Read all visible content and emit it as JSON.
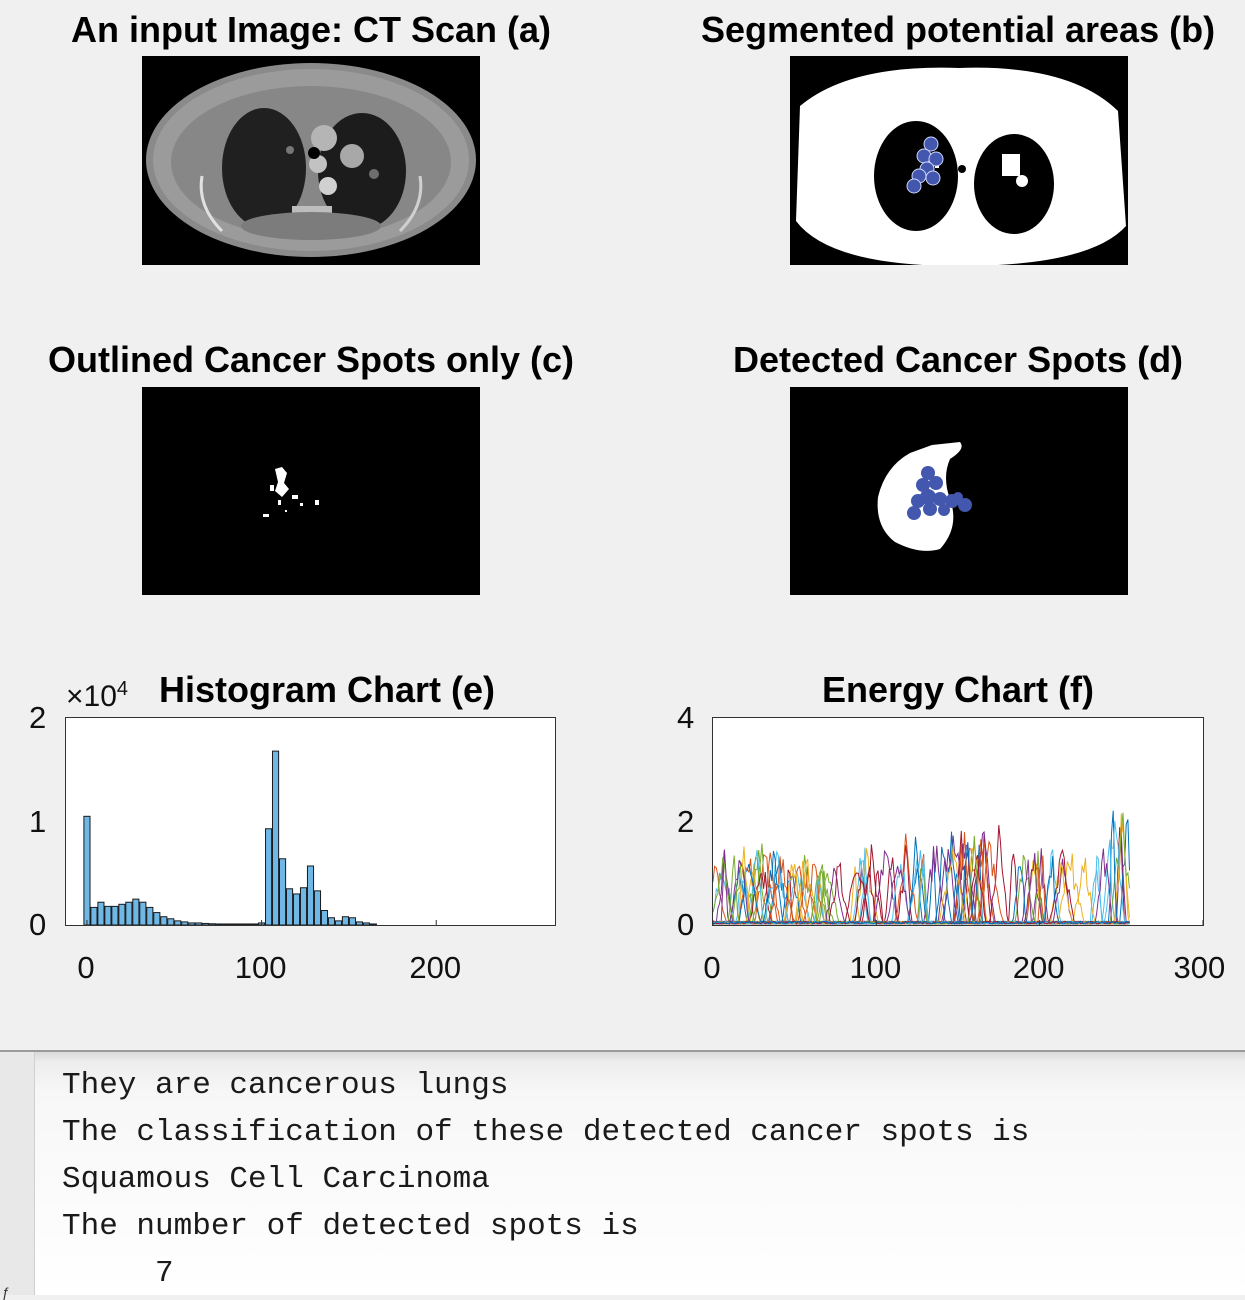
{
  "panels": {
    "a": {
      "title": "An input Image: CT Scan (a)"
    },
    "b": {
      "title": "Segmented potential areas (b)"
    },
    "c": {
      "title": "Outlined Cancer Spots only (c)"
    },
    "d": {
      "title": "Detected Cancer Spots (d)"
    }
  },
  "colors": {
    "figure_bg": "#f0f0f0",
    "spot_blue": "#4257ad",
    "histogram_bar": "#6fb8e6",
    "console_text": "#1a1a1a"
  },
  "chart_data": [
    {
      "type": "bar",
      "title": "Histogram Chart (e)",
      "exponent_label": "×10",
      "exponent_power": "4",
      "xlim": [
        -12,
        268
      ],
      "ylim": [
        0,
        2
      ],
      "xticks": [
        "0",
        "100",
        "200"
      ],
      "yticks": [
        "0",
        "1",
        "2"
      ],
      "bar_width": 3.5,
      "x": [
        0,
        4,
        8,
        12,
        16,
        20,
        24,
        28,
        32,
        36,
        40,
        44,
        48,
        52,
        56,
        60,
        64,
        68,
        72,
        76,
        80,
        84,
        88,
        92,
        96,
        100,
        104,
        108,
        112,
        116,
        120,
        124,
        128,
        132,
        136,
        140,
        144,
        148,
        152,
        156,
        160,
        164
      ],
      "values": [
        1.05,
        0.17,
        0.22,
        0.18,
        0.18,
        0.2,
        0.22,
        0.25,
        0.22,
        0.17,
        0.12,
        0.08,
        0.06,
        0.04,
        0.03,
        0.02,
        0.02,
        0.015,
        0.012,
        0.01,
        0.01,
        0.01,
        0.01,
        0.01,
        0.01,
        0.02,
        0.93,
        1.68,
        0.64,
        0.35,
        0.3,
        0.36,
        0.57,
        0.33,
        0.14,
        0.07,
        0.04,
        0.08,
        0.07,
        0.03,
        0.02,
        0.01
      ]
    },
    {
      "type": "line",
      "title": "Energy Chart (f)",
      "xlim": [
        0,
        300
      ],
      "ylim": [
        0,
        4
      ],
      "xticks": [
        "0",
        "100",
        "200",
        "300"
      ],
      "yticks": [
        "0",
        "2",
        "4"
      ],
      "series_count": 120,
      "series_colors": [
        "#0072bd",
        "#d95319",
        "#edb120",
        "#7e2f8e",
        "#77ac30",
        "#4dbeee",
        "#a2142f"
      ],
      "envelope": {
        "x": [
          0,
          10,
          30,
          50,
          70,
          100,
          120,
          140,
          160,
          180,
          200,
          220,
          240,
          245,
          250,
          255
        ],
        "y": [
          1.4,
          1.5,
          1.6,
          1.45,
          1.2,
          1.55,
          1.75,
          1.85,
          2.0,
          1.85,
          1.6,
          1.5,
          1.55,
          2.9,
          2.7,
          2.6
        ]
      }
    }
  ],
  "console": {
    "line1": "They are cancerous lungs",
    "line2": "The classification of these detected cancer spots is",
    "line3": "Squamous Cell Carcinoma",
    "line4": "The number of detected spots is",
    "line5": "     7"
  }
}
